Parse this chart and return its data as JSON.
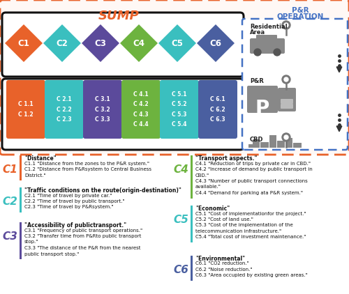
{
  "colors": {
    "C1": "#E8622A",
    "C2": "#3ABFBF",
    "C3": "#5B4A9B",
    "C4": "#6DB33F",
    "C5": "#3ABFBF",
    "C6": "#4A5FA0",
    "orange": "#E8622A",
    "blue": "#4472C4",
    "gray": "#888888",
    "darkgray": "#555555"
  },
  "criteria": [
    {
      "id": "C1",
      "color": "#E8622A",
      "subs": [
        "C 1.1",
        "C 1.2"
      ]
    },
    {
      "id": "C2",
      "color": "#3ABFBF",
      "subs": [
        "C 2.1",
        "C 2.2",
        "C 2.3"
      ]
    },
    {
      "id": "C3",
      "color": "#5B4A9B",
      "subs": [
        "C 3.1",
        "C 3.2",
        "C 3.3"
      ]
    },
    {
      "id": "C4",
      "color": "#6DB33F",
      "subs": [
        "C 4.1",
        "C 4.2",
        "C 4.3",
        "C 4.4"
      ]
    },
    {
      "id": "C5",
      "color": "#3ABFBF",
      "subs": [
        "C 5.1",
        "C 5.2",
        "C 5.3",
        "C 5.4"
      ]
    },
    {
      "id": "C6",
      "color": "#4A5FA0",
      "subs": [
        "C 6.1",
        "C 6.2",
        "C 6.3"
      ]
    }
  ],
  "desc_left": [
    {
      "id": "C1",
      "color": "#E8622A",
      "title": "\"Distance\"",
      "items": [
        "C1.1 \"Distance from the zones to the P&R system.\"",
        "C1.2 \"Distance from P&Rsystem to Central Business",
        "District.\""
      ]
    },
    {
      "id": "C2",
      "color": "#3ABFBF",
      "title": "\"Traffic conditions on the route(origin-destination)\"",
      "items": [
        "C2.1 \"Time of travel by private car.\"",
        "C2.2 \"Time of travel by public transport.\"",
        "C2.3 \"Time of travel by P&Rsystem.\""
      ]
    },
    {
      "id": "C3",
      "color": "#5B4A9B",
      "title": "\"Accessibility of publictransport.\"",
      "items": [
        "C3.1 \"Frequency of public transport operations.\"",
        "C3.2 \"Transfer time from P&Rto public transport",
        "stop.\"",
        "C3.3 \"The distance of the P&R from the nearest",
        "public transport stop.\""
      ]
    }
  ],
  "desc_right": [
    {
      "id": "C4",
      "color": "#6DB33F",
      "title": "\"Transport aspects.\"",
      "items": [
        "C4.1 \"Reduction of trips by private car in CBD.\"",
        "C4.2 \"Increase of demand by public transport in",
        "CBD.\"",
        "C4.3 \"Number of public transport connections",
        "available.\"",
        "C4.4 \"Demand for parking ata P&R system.\""
      ]
    },
    {
      "id": "C5",
      "color": "#3ABFBF",
      "title": "\"Economic\"",
      "items": [
        "C5.1 \"Cost of implementationfor the project.\"",
        "C5.2 \"Cost of land use.\"",
        "C5.3 \"Cost of the implementation of the",
        "telecommunication infrastructure.\"",
        "C5.4 \"Total cost of investment maintenance.\""
      ]
    },
    {
      "id": "C6",
      "color": "#4A5FA0",
      "title": "\"Environmental\"",
      "items": [
        "C6.1 \"CO2 reduction.\"",
        "C6.2 \"Noise reduction.\"",
        "C6.3 \"Area occupied by existing green areas.\""
      ]
    }
  ]
}
